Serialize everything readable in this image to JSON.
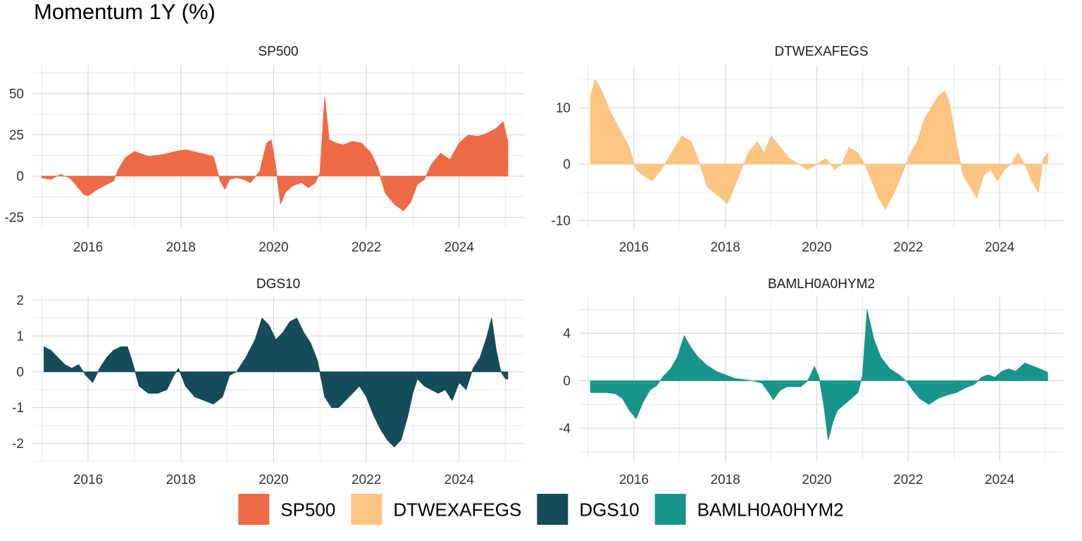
{
  "title": "Momentum 1Y (%)",
  "colors": {
    "SP500": "#EE6A44",
    "DTWEXAFEGS": "#FDC482",
    "DGS10": "#154C5A",
    "BAMLH0A0HYM2": "#17958A",
    "grid": "#D9D9D9"
  },
  "legend": [
    "SP500",
    "DTWEXAFEGS",
    "DGS10",
    "BAMLH0A0HYM2"
  ],
  "chart_data": [
    {
      "type": "area",
      "title": "SP500",
      "x_ticks": [
        "2016",
        "2018",
        "2020",
        "2022",
        "2024"
      ],
      "x_range": [
        2014.8,
        2025.4
      ],
      "y_ticks": [
        -25,
        0,
        25,
        50
      ],
      "ylim": [
        -32,
        67
      ],
      "grid": true,
      "color_key": "SP500",
      "x": [
        2015.0,
        2015.2,
        2015.4,
        2015.6,
        2015.7,
        2015.9,
        2016.0,
        2016.2,
        2016.4,
        2016.55,
        2016.65,
        2016.8,
        2017.0,
        2017.3,
        2017.6,
        2017.9,
        2018.1,
        2018.4,
        2018.7,
        2018.85,
        2018.95,
        2019.05,
        2019.2,
        2019.35,
        2019.5,
        2019.7,
        2019.85,
        2019.95,
        2020.05,
        2020.15,
        2020.25,
        2020.4,
        2020.6,
        2020.75,
        2020.9,
        2021.0,
        2021.1,
        2021.2,
        2021.35,
        2021.5,
        2021.7,
        2021.9,
        2022.1,
        2022.25,
        2022.4,
        2022.6,
        2022.8,
        2022.95,
        2023.1,
        2023.25,
        2023.4,
        2023.6,
        2023.8,
        2024.0,
        2024.2,
        2024.4,
        2024.6,
        2024.8,
        2024.95,
        2025.05
      ],
      "y": [
        -1,
        -2,
        1,
        -1,
        -4,
        -11,
        -12,
        -8,
        -5,
        -3,
        4,
        11,
        15,
        12,
        13,
        15,
        16,
        14,
        12,
        -3,
        -8,
        -2,
        -1,
        -2,
        -4,
        3,
        20,
        22,
        5,
        -17,
        -10,
        -6,
        -4,
        -7,
        -4,
        2,
        48,
        22,
        20,
        19,
        21,
        20,
        14,
        5,
        -10,
        -17,
        -21,
        -16,
        -5,
        -2,
        7,
        14,
        10,
        20,
        25,
        24,
        26,
        29,
        33,
        21
      ]
    },
    {
      "type": "area",
      "title": "DTWEXAFEGS",
      "x_ticks": [
        "2016",
        "2018",
        "2020",
        "2022",
        "2024"
      ],
      "x_range": [
        2014.8,
        2025.4
      ],
      "y_ticks": [
        -10,
        0,
        10
      ],
      "ylim": [
        -11.5,
        17.5
      ],
      "grid": true,
      "color_key": "DTWEXAFEGS",
      "x": [
        2015.05,
        2015.15,
        2015.3,
        2015.5,
        2015.7,
        2015.9,
        2016.05,
        2016.2,
        2016.4,
        2016.6,
        2016.75,
        2016.9,
        2017.05,
        2017.25,
        2017.4,
        2017.6,
        2017.75,
        2017.9,
        2018.05,
        2018.2,
        2018.35,
        2018.5,
        2018.7,
        2018.85,
        2019.0,
        2019.2,
        2019.4,
        2019.6,
        2019.8,
        2020.0,
        2020.2,
        2020.4,
        2020.55,
        2020.7,
        2020.9,
        2021.05,
        2021.2,
        2021.35,
        2021.5,
        2021.7,
        2021.9,
        2022.05,
        2022.2,
        2022.35,
        2022.5,
        2022.65,
        2022.8,
        2022.9,
        2023.05,
        2023.2,
        2023.35,
        2023.5,
        2023.65,
        2023.8,
        2023.95,
        2024.1,
        2024.25,
        2024.4,
        2024.55,
        2024.7,
        2024.85,
        2024.95,
        2025.05
      ],
      "y": [
        12,
        15,
        13,
        9,
        6,
        3,
        -1,
        -2,
        -3,
        -1,
        1,
        3,
        5,
        4,
        1,
        -4,
        -5,
        -6,
        -7,
        -4,
        -1,
        2,
        4,
        2,
        5,
        3,
        1,
        0,
        -1,
        0,
        1,
        -1,
        0,
        3,
        2,
        0,
        -3,
        -6,
        -8,
        -5,
        -1,
        2,
        4,
        8,
        10,
        12,
        13,
        11,
        4,
        -2,
        -4,
        -6,
        -2,
        -1,
        -3,
        -1,
        0,
        2,
        0,
        -3,
        -5,
        1,
        2
      ]
    },
    {
      "type": "area",
      "title": "DGS10",
      "x_ticks": [
        "2016",
        "2018",
        "2020",
        "2022",
        "2024"
      ],
      "x_range": [
        2014.8,
        2025.4
      ],
      "y_ticks": [
        -2,
        -1,
        0,
        1,
        2
      ],
      "ylim": [
        -2.5,
        2.1
      ],
      "grid": true,
      "color_key": "DGS10",
      "x": [
        2015.05,
        2015.2,
        2015.35,
        2015.5,
        2015.65,
        2015.8,
        2015.95,
        2016.1,
        2016.25,
        2016.4,
        2016.55,
        2016.7,
        2016.85,
        2016.95,
        2017.1,
        2017.3,
        2017.5,
        2017.7,
        2017.85,
        2017.95,
        2018.1,
        2018.3,
        2018.5,
        2018.7,
        2018.9,
        2019.05,
        2019.2,
        2019.4,
        2019.6,
        2019.75,
        2019.9,
        2020.05,
        2020.2,
        2020.35,
        2020.5,
        2020.65,
        2020.8,
        2020.95,
        2021.1,
        2021.25,
        2021.4,
        2021.55,
        2021.7,
        2021.85,
        2022.0,
        2022.15,
        2022.3,
        2022.45,
        2022.6,
        2022.75,
        2022.9,
        2023.0,
        2023.1,
        2023.25,
        2023.4,
        2023.55,
        2023.7,
        2023.85,
        2024.0,
        2024.15,
        2024.3,
        2024.45,
        2024.6,
        2024.7,
        2024.8,
        2024.9,
        2025.0,
        2025.05
      ],
      "y": [
        0.7,
        0.6,
        0.4,
        0.2,
        0.1,
        0.2,
        -0.1,
        -0.3,
        0.1,
        0.4,
        0.6,
        0.7,
        0.7,
        0.3,
        -0.4,
        -0.6,
        -0.6,
        -0.5,
        -0.1,
        0.1,
        -0.4,
        -0.7,
        -0.8,
        -0.9,
        -0.7,
        -0.1,
        0.0,
        0.4,
        0.9,
        1.5,
        1.3,
        0.9,
        1.1,
        1.4,
        1.5,
        1.1,
        0.8,
        0.3,
        -0.7,
        -1.0,
        -1.0,
        -0.8,
        -0.6,
        -0.4,
        -0.7,
        -1.2,
        -1.6,
        -1.9,
        -2.1,
        -1.9,
        -1.2,
        -0.6,
        -0.2,
        -0.4,
        -0.5,
        -0.6,
        -0.5,
        -0.8,
        -0.3,
        -0.5,
        0.1,
        0.4,
        1.0,
        1.5,
        0.6,
        0.0,
        -0.2,
        -0.2
      ]
    },
    {
      "type": "area",
      "title": "BAMLH0A0HYM2",
      "x_ticks": [
        "2016",
        "2018",
        "2020",
        "2022",
        "2024"
      ],
      "x_range": [
        2014.8,
        2025.4
      ],
      "y_ticks": [
        -4,
        0,
        4
      ],
      "ylim": [
        -6.8,
        7.1
      ],
      "grid": true,
      "color_key": "BAMLH0A0HYM2",
      "x": [
        2015.05,
        2015.2,
        2015.4,
        2015.6,
        2015.75,
        2015.9,
        2016.05,
        2016.2,
        2016.35,
        2016.5,
        2016.65,
        2016.8,
        2016.95,
        2017.1,
        2017.25,
        2017.4,
        2017.6,
        2017.8,
        2018.0,
        2018.2,
        2018.4,
        2018.6,
        2018.8,
        2018.95,
        2019.05,
        2019.2,
        2019.35,
        2019.5,
        2019.65,
        2019.8,
        2019.95,
        2020.05,
        2020.15,
        2020.25,
        2020.35,
        2020.45,
        2020.6,
        2020.75,
        2020.9,
        2021.0,
        2021.1,
        2021.25,
        2021.4,
        2021.6,
        2021.8,
        2021.95,
        2022.1,
        2022.25,
        2022.45,
        2022.65,
        2022.85,
        2023.05,
        2023.25,
        2023.45,
        2023.6,
        2023.75,
        2023.9,
        2024.05,
        2024.2,
        2024.35,
        2024.55,
        2024.75,
        2024.95,
        2025.05
      ],
      "y": [
        -1.0,
        -1.0,
        -1.0,
        -1.1,
        -1.5,
        -2.5,
        -3.2,
        -1.8,
        -0.8,
        -0.4,
        0.4,
        1.0,
        2.0,
        3.8,
        2.8,
        2.0,
        1.3,
        0.8,
        0.5,
        0.2,
        0.1,
        0.0,
        -0.2,
        -1.0,
        -1.6,
        -0.8,
        -0.5,
        -0.5,
        -0.5,
        0.0,
        1.2,
        0.3,
        -2.0,
        -5.0,
        -3.5,
        -2.5,
        -2.0,
        -1.5,
        -1.0,
        0.5,
        6.0,
        3.5,
        2.0,
        1.0,
        0.5,
        0.0,
        -0.8,
        -1.5,
        -2.0,
        -1.5,
        -1.2,
        -1.0,
        -0.6,
        -0.3,
        0.3,
        0.5,
        0.3,
        0.8,
        1.0,
        0.8,
        1.5,
        1.2,
        0.9,
        0.7
      ]
    }
  ]
}
